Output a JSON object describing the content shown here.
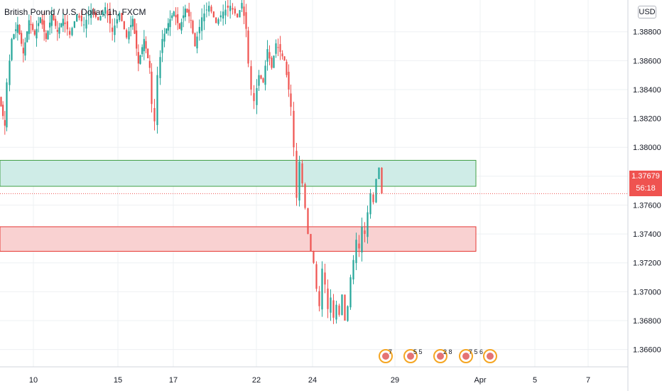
{
  "chart_data": {
    "type": "candlestick",
    "title": "British Pound / U.S. Dollar, 1h, FXCM",
    "currency": "USD",
    "y_ticks": [
      "1.38800",
      "1.38600",
      "1.38400",
      "1.38200",
      "1.38000",
      "1.37800",
      "1.37600",
      "1.37400",
      "1.37200",
      "1.37000",
      "1.36800",
      "1.36600"
    ],
    "ylim": [
      1.3648,
      1.3902
    ],
    "x_ticks": [
      "10",
      "15",
      "17",
      "22",
      "24",
      "29",
      "Apr",
      "5",
      "7"
    ],
    "last_price": "1.37679",
    "countdown": "56:18",
    "zones": [
      {
        "name": "resistance zone",
        "low": 1.3773,
        "high": 1.3791,
        "fill": "#cfece7",
        "stroke": "#43a047"
      },
      {
        "name": "support zone",
        "low": 1.3728,
        "high": 1.3745,
        "fill": "#f9d1d1",
        "stroke": "#e53935"
      }
    ],
    "price_path": [
      [
        0,
        1.3835
      ],
      [
        8,
        1.3815
      ],
      [
        12,
        1.3845
      ],
      [
        18,
        1.3875
      ],
      [
        26,
        1.3885
      ],
      [
        34,
        1.3865
      ],
      [
        42,
        1.3888
      ],
      [
        50,
        1.3878
      ],
      [
        58,
        1.389
      ],
      [
        66,
        1.3875
      ],
      [
        74,
        1.3892
      ],
      [
        82,
        1.388
      ],
      [
        90,
        1.3889
      ],
      [
        100,
        1.3878
      ],
      [
        110,
        1.3892
      ],
      [
        120,
        1.3885
      ],
      [
        130,
        1.3895
      ],
      [
        140,
        1.3888
      ],
      [
        150,
        1.3897
      ],
      [
        160,
        1.388
      ],
      [
        170,
        1.3893
      ],
      [
        180,
        1.3876
      ],
      [
        188,
        1.3889
      ],
      [
        196,
        1.3858
      ],
      [
        204,
        1.3875
      ],
      [
        212,
        1.3855
      ],
      [
        216,
        1.383
      ],
      [
        220,
        1.3818
      ],
      [
        224,
        1.385
      ],
      [
        230,
        1.3875
      ],
      [
        238,
        1.3886
      ],
      [
        246,
        1.3894
      ],
      [
        254,
        1.3882
      ],
      [
        262,
        1.3896
      ],
      [
        270,
        1.3888
      ],
      [
        276,
        1.387
      ],
      [
        286,
        1.389
      ],
      [
        296,
        1.3898
      ],
      [
        306,
        1.3886
      ],
      [
        316,
        1.3894
      ],
      [
        326,
        1.3898
      ],
      [
        336,
        1.389
      ],
      [
        342,
        1.39
      ],
      [
        348,
        1.3882
      ],
      [
        352,
        1.3858
      ],
      [
        356,
        1.384
      ],
      [
        360,
        1.3832
      ],
      [
        366,
        1.385
      ],
      [
        372,
        1.3845
      ],
      [
        378,
        1.3868
      ],
      [
        384,
        1.3855
      ],
      [
        390,
        1.3872
      ],
      [
        396,
        1.3866
      ],
      [
        402,
        1.386
      ],
      [
        408,
        1.384
      ],
      [
        412,
        1.3828
      ],
      [
        416,
        1.38
      ],
      [
        420,
        1.3765
      ],
      [
        424,
        1.379
      ],
      [
        428,
        1.3775
      ],
      [
        432,
        1.3758
      ],
      [
        436,
        1.374
      ],
      [
        440,
        1.3728
      ],
      [
        444,
        1.372
      ],
      [
        448,
        1.3702
      ],
      [
        452,
        1.369
      ],
      [
        456,
        1.3716
      ],
      [
        460,
        1.3705
      ],
      [
        464,
        1.3688
      ],
      [
        468,
        1.3696
      ],
      [
        472,
        1.3682
      ],
      [
        476,
        1.3691
      ],
      [
        480,
        1.3684
      ],
      [
        484,
        1.3698
      ],
      [
        488,
        1.368
      ],
      [
        492,
        1.369
      ],
      [
        496,
        1.371
      ],
      [
        500,
        1.3722
      ],
      [
        504,
        1.3736
      ],
      [
        508,
        1.373
      ],
      [
        512,
        1.3745
      ],
      [
        516,
        1.374
      ],
      [
        520,
        1.3755
      ],
      [
        524,
        1.3768
      ],
      [
        528,
        1.3762
      ],
      [
        532,
        1.3778
      ],
      [
        536,
        1.3786
      ],
      [
        540,
        1.3768
      ]
    ],
    "events": [
      {
        "label": "7",
        "at": 543
      },
      {
        "label": "5 5",
        "at": 578
      },
      {
        "label": "2 8",
        "at": 620
      },
      {
        "label": "7 5 6",
        "at": 656
      },
      {
        "label": "",
        "at": 690
      }
    ]
  },
  "ui": {
    "title_parts": {
      "symbol": "British Pound / U.S. Dollar",
      "interval": "1h",
      "source": "FXCM"
    },
    "currency_label": "USD",
    "price_tag_value": "1.37679",
    "price_tag_countdown": "56:18"
  }
}
